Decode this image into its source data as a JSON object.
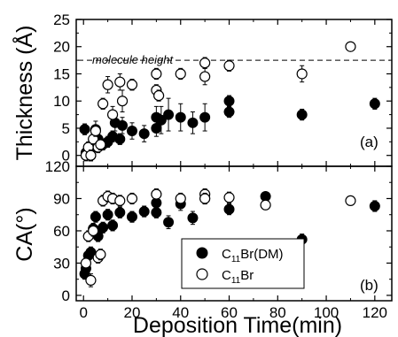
{
  "chart_data": [
    {
      "type": "scatter",
      "panel_label": "(a)",
      "ylabel": "Thickness (Å)",
      "xlim": [
        -3,
        127
      ],
      "ylim": [
        -2,
        25
      ],
      "yticks": [
        0,
        5,
        10,
        15,
        20,
        25
      ],
      "reference_line": {
        "y": 17.5,
        "label": "molecule height",
        "style": "dashed"
      },
      "series": [
        {
          "marker": "filled-circle",
          "points": [
            {
              "x": 0.5,
              "y": 4.8,
              "err": 1.0
            },
            {
              "x": 1,
              "y": 0.5,
              "err": 1.2
            },
            {
              "x": 2,
              "y": 1.0,
              "err": 1.0
            },
            {
              "x": 3,
              "y": 0.0,
              "err": 1.0
            },
            {
              "x": 4,
              "y": 1.5,
              "err": 1.0
            },
            {
              "x": 5,
              "y": 4.8,
              "err": 1.5
            },
            {
              "x": 6,
              "y": 3.0,
              "err": 1.0
            },
            {
              "x": 8,
              "y": 2.0,
              "err": 1.0
            },
            {
              "x": 10,
              "y": 2.5,
              "err": 1.0
            },
            {
              "x": 12,
              "y": 3.5,
              "err": 1.0
            },
            {
              "x": 13,
              "y": 6.0,
              "err": 1.5
            },
            {
              "x": 15,
              "y": 3.0,
              "err": 1.0
            },
            {
              "x": 16,
              "y": 5.5,
              "err": 1.5
            },
            {
              "x": 20,
              "y": 4.5,
              "err": 1.5
            },
            {
              "x": 25,
              "y": 4.0,
              "err": 1.5
            },
            {
              "x": 30,
              "y": 5.0,
              "err": 1.5
            },
            {
              "x": 30,
              "y": 7.0,
              "err": 2.0
            },
            {
              "x": 32,
              "y": 6.5,
              "err": 2.5
            },
            {
              "x": 35,
              "y": 7.5,
              "err": 3.0
            },
            {
              "x": 40,
              "y": 7.0,
              "err": 2.5
            },
            {
              "x": 45,
              "y": 6.0,
              "err": 2.0
            },
            {
              "x": 50,
              "y": 7.0,
              "err": 2.5
            },
            {
              "x": 60,
              "y": 8.0,
              "err": 1.0
            },
            {
              "x": 60,
              "y": 10.0,
              "err": 1.0
            },
            {
              "x": 90,
              "y": 7.5,
              "err": 1.0
            },
            {
              "x": 120,
              "y": 9.5,
              "err": 1.0
            }
          ]
        },
        {
          "marker": "open-circle",
          "points": [
            {
              "x": 1,
              "y": 0.0,
              "err": 1.0
            },
            {
              "x": 2,
              "y": 1.5,
              "err": 1.0
            },
            {
              "x": 3,
              "y": 0.0,
              "err": 1.0
            },
            {
              "x": 4,
              "y": 3.0,
              "err": 1.0
            },
            {
              "x": 5,
              "y": 4.5,
              "err": 1.0
            },
            {
              "x": 6,
              "y": 1.5,
              "err": 1.0
            },
            {
              "x": 7,
              "y": 2.0,
              "err": 1.0
            },
            {
              "x": 8,
              "y": 9.5,
              "err": 1.0
            },
            {
              "x": 10,
              "y": 13.0,
              "err": 1.5
            },
            {
              "x": 12,
              "y": 7.5,
              "err": 1.5
            },
            {
              "x": 15,
              "y": 13.5,
              "err": 1.5
            },
            {
              "x": 16,
              "y": 10.0,
              "err": 2.0
            },
            {
              "x": 20,
              "y": 13.0,
              "err": 1.0
            },
            {
              "x": 30,
              "y": 12.0,
              "err": 1.0
            },
            {
              "x": 31,
              "y": 11.0,
              "err": 1.0
            },
            {
              "x": 30,
              "y": 15.0,
              "err": 1.0
            },
            {
              "x": 40,
              "y": 15.0,
              "err": 1.0
            },
            {
              "x": 50,
              "y": 17.0,
              "err": 1.0
            },
            {
              "x": 50,
              "y": 14.5,
              "err": 1.5
            },
            {
              "x": 60,
              "y": 16.5,
              "err": 1.0
            },
            {
              "x": 90,
              "y": 15.0,
              "err": 1.5
            },
            {
              "x": 110,
              "y": 20.0,
              "err": 0.5
            }
          ]
        }
      ]
    },
    {
      "type": "scatter",
      "panel_label": "(b)",
      "ylabel": "CA(°)",
      "xlabel": "Deposition Time(min)",
      "xlim": [
        -3,
        127
      ],
      "ylim": [
        -5,
        120
      ],
      "yticks": [
        0,
        30,
        60,
        90,
        120
      ],
      "xticks": [
        0,
        20,
        40,
        60,
        80,
        100,
        120
      ],
      "legend": {
        "placement": "lower-center"
      },
      "series": [
        {
          "name": "C11Br(DM)",
          "name_main": "C",
          "name_sub": "11",
          "name_rest": "Br(DM)",
          "marker": "filled-circle",
          "points": [
            {
              "x": 0.5,
              "y": 20,
              "err": 5
            },
            {
              "x": 1,
              "y": 25,
              "err": 5
            },
            {
              "x": 2,
              "y": 37,
              "err": 5
            },
            {
              "x": 3,
              "y": 40,
              "err": 5
            },
            {
              "x": 4,
              "y": 62,
              "err": 5
            },
            {
              "x": 5,
              "y": 73,
              "err": 5
            },
            {
              "x": 6,
              "y": 55,
              "err": 5
            },
            {
              "x": 8,
              "y": 63,
              "err": 5
            },
            {
              "x": 10,
              "y": 75,
              "err": 5
            },
            {
              "x": 12,
              "y": 65,
              "err": 5
            },
            {
              "x": 15,
              "y": 77,
              "err": 5
            },
            {
              "x": 20,
              "y": 73,
              "err": 5
            },
            {
              "x": 25,
              "y": 78,
              "err": 5
            },
            {
              "x": 30,
              "y": 86,
              "err": 5
            },
            {
              "x": 30,
              "y": 77,
              "err": 5
            },
            {
              "x": 35,
              "y": 68,
              "err": 6
            },
            {
              "x": 40,
              "y": 85,
              "err": 6
            },
            {
              "x": 45,
              "y": 72,
              "err": 6
            },
            {
              "x": 50,
              "y": 90,
              "err": 5
            },
            {
              "x": 60,
              "y": 80,
              "err": 5
            },
            {
              "x": 75,
              "y": 92,
              "err": 3
            },
            {
              "x": 90,
              "y": 52,
              "err": 5
            },
            {
              "x": 120,
              "y": 83,
              "err": 5
            }
          ]
        },
        {
          "name": "C11Br",
          "name_main": "C",
          "name_sub": "11",
          "name_rest": "Br",
          "marker": "open-circle",
          "points": [
            {
              "x": 1,
              "y": 30,
              "err": 5
            },
            {
              "x": 2,
              "y": 55,
              "err": 5
            },
            {
              "x": 3,
              "y": 14,
              "err": 6
            },
            {
              "x": 4,
              "y": 60,
              "err": 5
            },
            {
              "x": 6,
              "y": 35,
              "err": 5
            },
            {
              "x": 7,
              "y": 38,
              "err": 5
            },
            {
              "x": 8,
              "y": 88,
              "err": 5
            },
            {
              "x": 10,
              "y": 92,
              "err": 5
            },
            {
              "x": 12,
              "y": 90,
              "err": 5
            },
            {
              "x": 15,
              "y": 88,
              "err": 5
            },
            {
              "x": 20,
              "y": 90,
              "err": 5
            },
            {
              "x": 30,
              "y": 94,
              "err": 5
            },
            {
              "x": 40,
              "y": 90,
              "err": 5
            },
            {
              "x": 50,
              "y": 94,
              "err": 5
            },
            {
              "x": 50,
              "y": 90,
              "err": 5
            },
            {
              "x": 60,
              "y": 91,
              "err": 5
            },
            {
              "x": 75,
              "y": 84,
              "err": 3
            },
            {
              "x": 110,
              "y": 88,
              "err": 3
            }
          ]
        }
      ]
    }
  ]
}
